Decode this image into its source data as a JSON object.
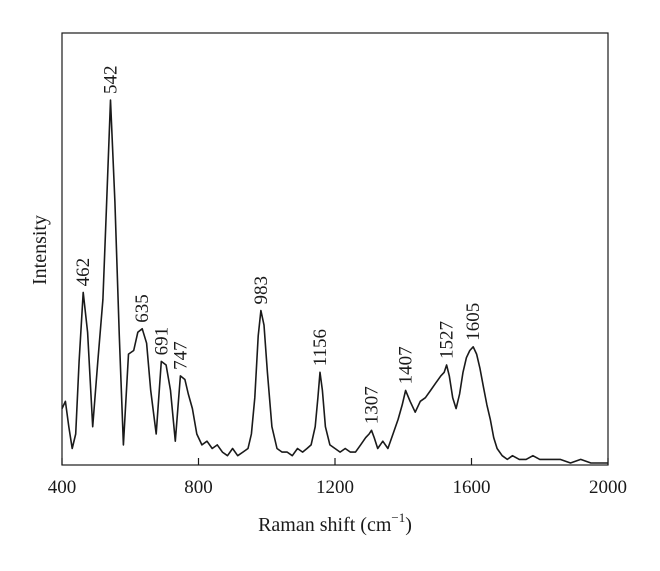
{
  "chart_data": {
    "type": "line",
    "xlabel": "Raman shift",
    "xlabel_unit_base": "(cm",
    "xlabel_unit_exp": "−1",
    "xlabel_unit_close": ")",
    "ylabel": "Intensity",
    "xlim": [
      400,
      2000
    ],
    "ylim": [
      0,
      100
    ],
    "x_ticks": [
      400,
      800,
      1200,
      1600,
      2000
    ],
    "x_tick_labels": [
      "400",
      "800",
      "1200",
      "1600",
      "2000"
    ],
    "y_tick_labels": [],
    "grid": false,
    "legend": "none",
    "line_color": "#1a1a1a",
    "series": [
      {
        "x": [
          400,
          410,
          420,
          430,
          440,
          450,
          462,
          475,
          490,
          505,
          520,
          530,
          542,
          555,
          568,
          580,
          595,
          610,
          622,
          635,
          648,
          660,
          676,
          691,
          705,
          718,
          732,
          747,
          760,
          770,
          782,
          795,
          810,
          825,
          840,
          855,
          870,
          885,
          900,
          915,
          930,
          945,
          955,
          965,
          975,
          983,
          992,
          1002,
          1015,
          1030,
          1045,
          1060,
          1075,
          1090,
          1105,
          1118,
          1130,
          1142,
          1150,
          1156,
          1163,
          1172,
          1185,
          1200,
          1215,
          1230,
          1245,
          1260,
          1275,
          1290,
          1300,
          1307,
          1315,
          1325,
          1340,
          1355,
          1370,
          1385,
          1397,
          1407,
          1420,
          1435,
          1450,
          1465,
          1480,
          1495,
          1510,
          1520,
          1527,
          1535,
          1545,
          1555,
          1565,
          1575,
          1585,
          1595,
          1605,
          1615,
          1625,
          1635,
          1645,
          1655,
          1665,
          1675,
          1690,
          1705,
          1720,
          1740,
          1760,
          1780,
          1800,
          1830,
          1860,
          1890,
          1920,
          1950,
          1980,
          2000
        ],
        "y": [
          15,
          17,
          10,
          4,
          8,
          28,
          47,
          36,
          10,
          28,
          45,
          70,
          100,
          72,
          35,
          5,
          30,
          31,
          36,
          37,
          33,
          20,
          8,
          28,
          27,
          20,
          6,
          24,
          23,
          19,
          15,
          8,
          5,
          6,
          4,
          5,
          3,
          2,
          4,
          2,
          3,
          4,
          8,
          18,
          35,
          42,
          38,
          25,
          10,
          4,
          3,
          3,
          2,
          4,
          3,
          4,
          5,
          10,
          18,
          25,
          20,
          10,
          5,
          4,
          3,
          4,
          3,
          3,
          5,
          7,
          8,
          9,
          7,
          4,
          6,
          4,
          8,
          12,
          16,
          20,
          17,
          14,
          17,
          18,
          20,
          22,
          24,
          25,
          27,
          24,
          18,
          15,
          19,
          25,
          29,
          31,
          32,
          30,
          26,
          21,
          16,
          12,
          7,
          4,
          2,
          1,
          2,
          1,
          1,
          2,
          1,
          1,
          1,
          0,
          1,
          0,
          0,
          0
        ]
      }
    ],
    "annotations": [
      {
        "text": "462",
        "x": 462,
        "y": 47
      },
      {
        "text": "542",
        "x": 542,
        "y": 100
      },
      {
        "text": "635",
        "x": 635,
        "y": 37
      },
      {
        "text": "691",
        "x": 691,
        "y": 28
      },
      {
        "text": "747",
        "x": 747,
        "y": 24
      },
      {
        "text": "983",
        "x": 983,
        "y": 42
      },
      {
        "text": "1156",
        "x": 1156,
        "y": 25
      },
      {
        "text": "1307",
        "x": 1307,
        "y": 9
      },
      {
        "text": "1407",
        "x": 1407,
        "y": 20
      },
      {
        "text": "1527",
        "x": 1527,
        "y": 27
      },
      {
        "text": "1605",
        "x": 1605,
        "y": 32
      }
    ]
  }
}
